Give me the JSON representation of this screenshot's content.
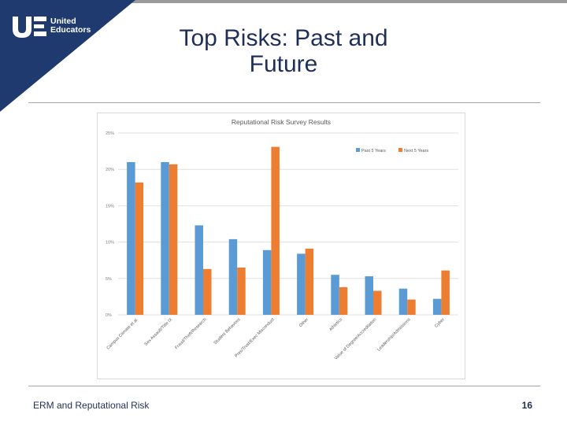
{
  "slide": {
    "title": "Top Risks: Past and\nFuture",
    "footer": "ERM and Reputational Risk",
    "page_number": "16"
  },
  "logo": {
    "line1": "United",
    "line2": "Educators"
  },
  "colors": {
    "navy": "#1f3a6e",
    "past": "#5b9bd5",
    "next": "#ed7d31"
  },
  "chart_data": {
    "type": "bar",
    "title": "Reputational Risk Survey Results",
    "categories": [
      "Campus Climate et al.",
      "Sex Assault/Title IX",
      "Fraud/Theft/Research",
      "Student Behaviors",
      "Pres/Trust/Exec Misconduct",
      "Other",
      "Athletics",
      "Value of Degree/Accreditation",
      "Leadership/Admissions",
      "Cyber"
    ],
    "series": [
      {
        "name": "Past 5 Years",
        "values": [
          21,
          21,
          12.3,
          10.4,
          8.9,
          8.4,
          5.5,
          5.3,
          3.6,
          2.2
        ]
      },
      {
        "name": "Next 5 Years",
        "values": [
          18.2,
          20.7,
          6.3,
          6.5,
          23.1,
          9.1,
          3.8,
          3.3,
          2.1,
          6.1
        ]
      }
    ],
    "yticks": [
      "0%",
      "5%",
      "10%",
      "15%",
      "20%",
      "25%"
    ],
    "ylim": [
      0,
      25
    ],
    "legend": "top-right",
    "grid": true
  }
}
